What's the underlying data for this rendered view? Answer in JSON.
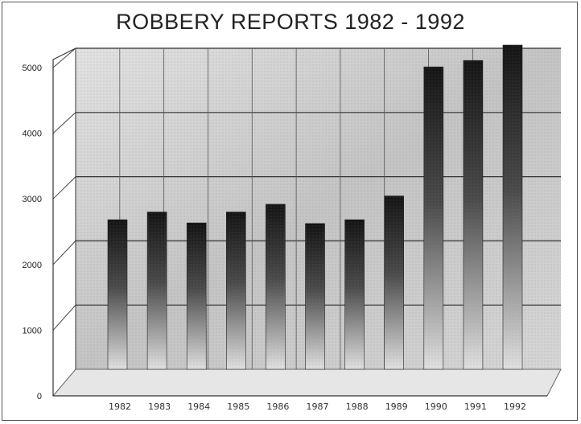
{
  "chart_data": {
    "type": "bar",
    "title": "ROBBERY REPORTS 1982 - 1992",
    "xlabel": "",
    "ylabel": "",
    "categories": [
      "1982",
      "1983",
      "1984",
      "1985",
      "1986",
      "1987",
      "1988",
      "1989",
      "1990",
      "1991",
      "1992"
    ],
    "values": [
      2330,
      2450,
      2280,
      2450,
      2570,
      2270,
      2330,
      2700,
      4710,
      4810,
      5050
    ],
    "ylim": [
      0,
      5000
    ],
    "yticks": [
      0,
      1000,
      2000,
      3000,
      4000,
      5000
    ],
    "grid": true,
    "style": "3d-perspective",
    "colors": {
      "bar_top": "#1a1a1a",
      "bar_bottom": "#d8d8d8",
      "wall": "#c9c9c9",
      "grid": "#333333"
    }
  }
}
